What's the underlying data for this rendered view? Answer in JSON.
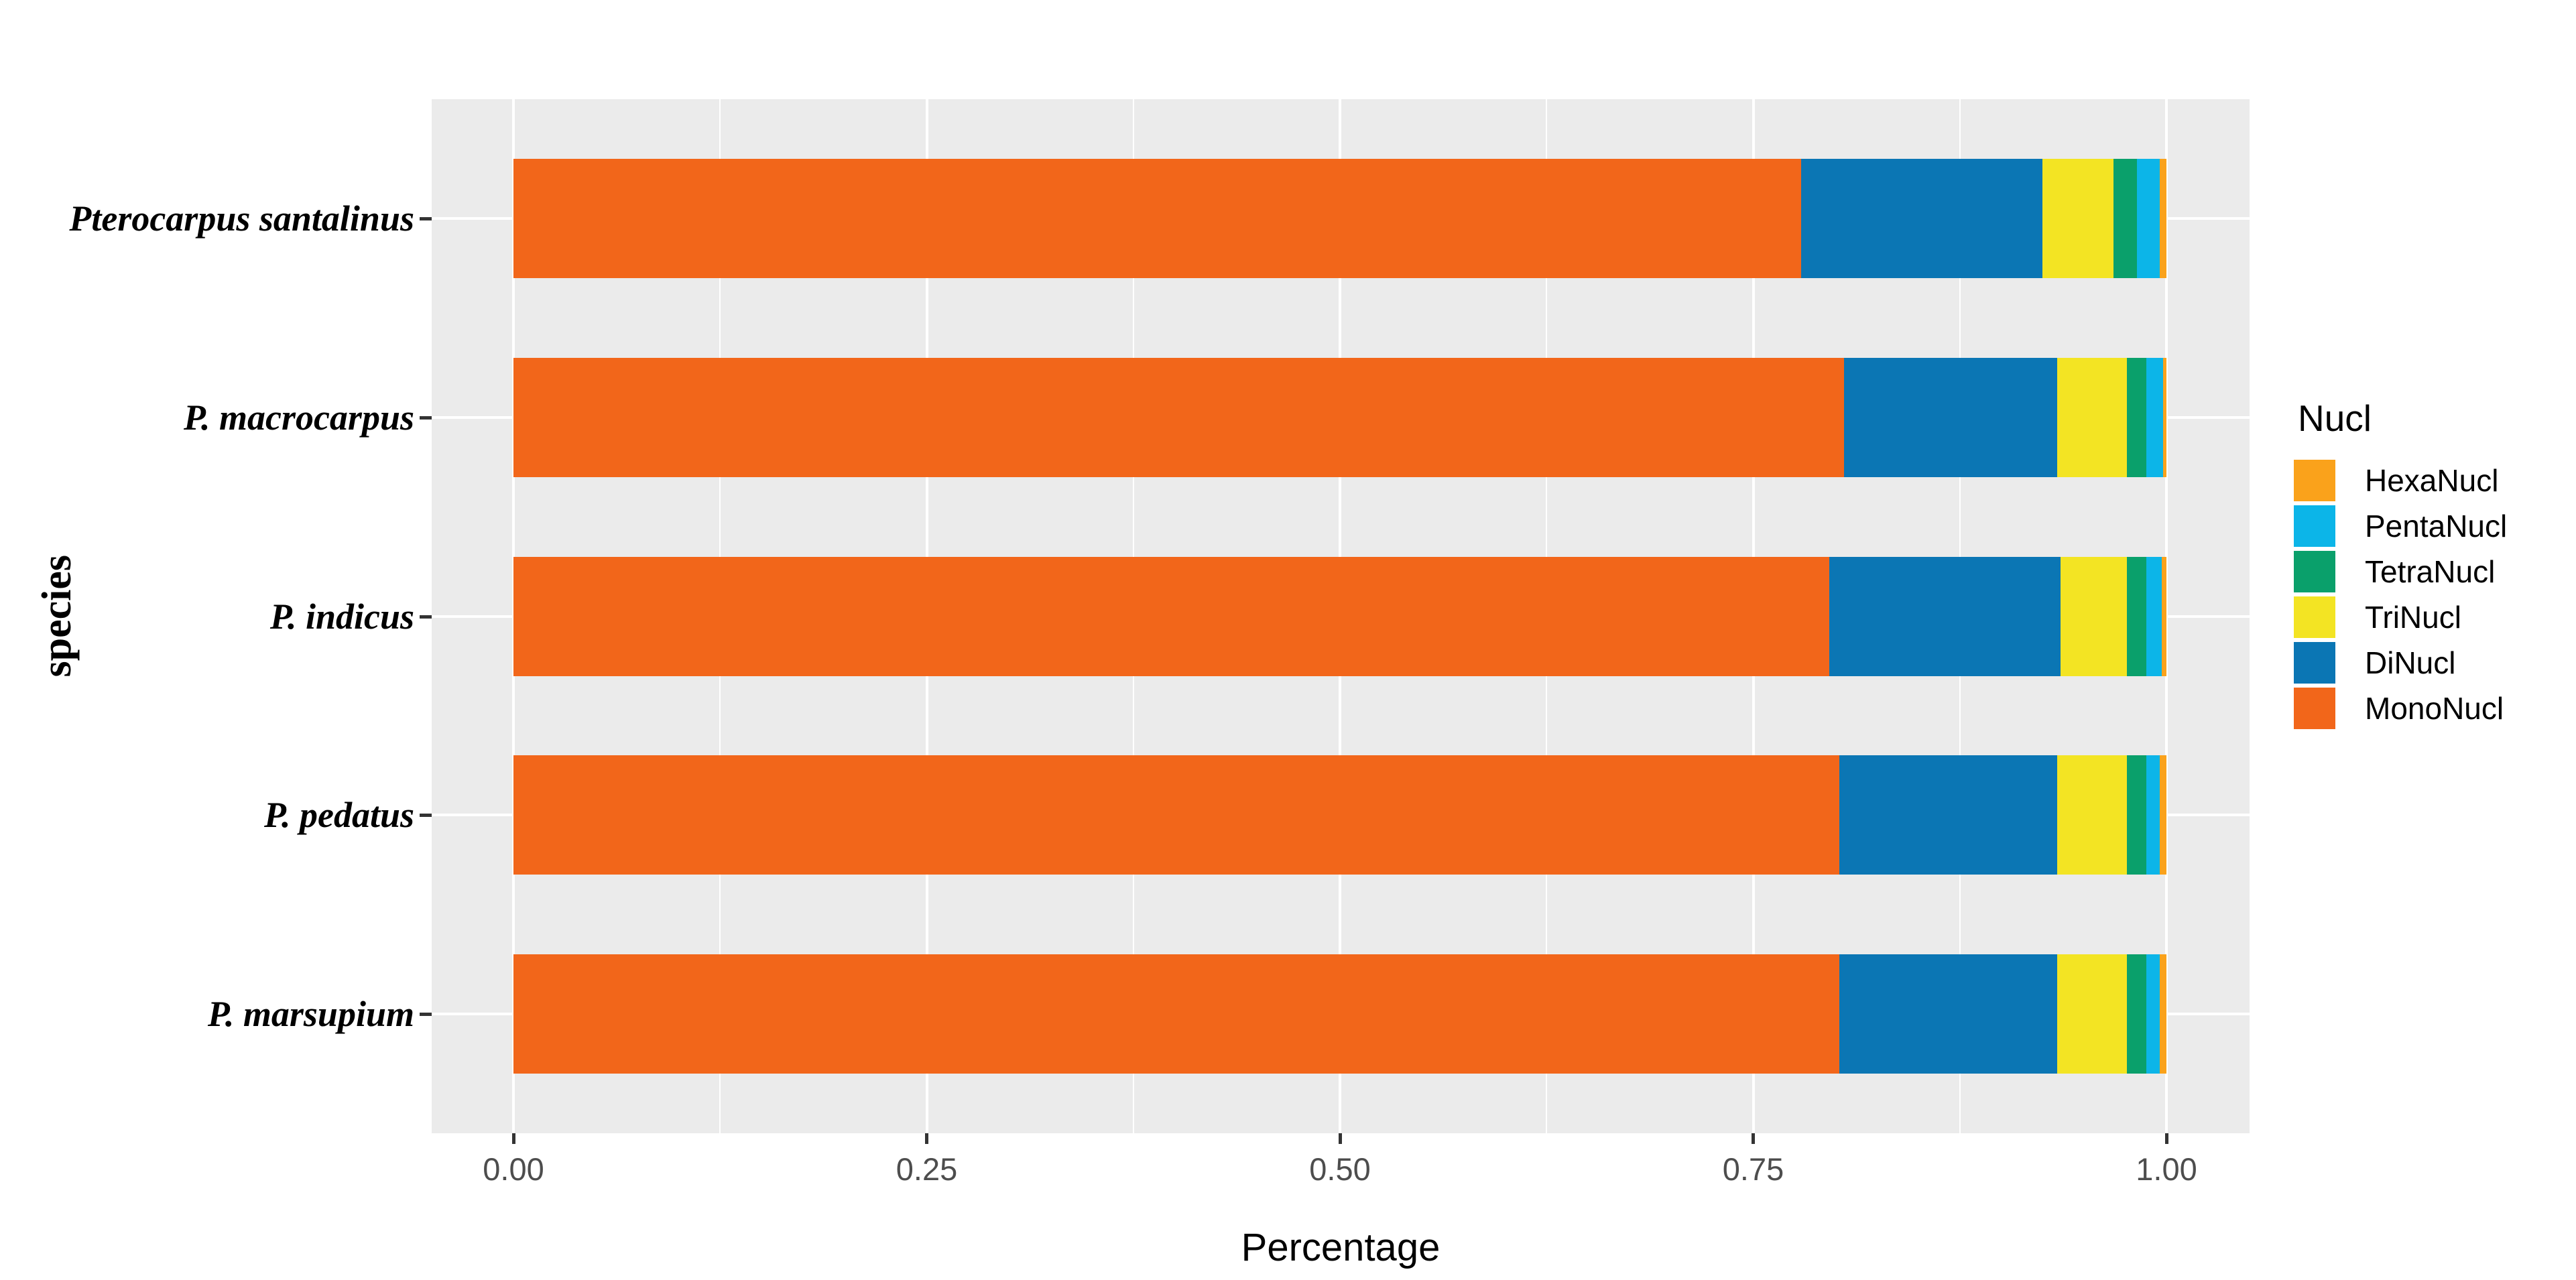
{
  "figure": {
    "background": "#FFFFFF",
    "panel_background": "#EBEBEB",
    "gridline_color": "#FFFFFF",
    "tick_mark_color": "#333333",
    "tick_label_color": "#4D4D4D",
    "axis_title_color": "#000000"
  },
  "legend": {
    "title": "Nucl",
    "entries": [
      {
        "label": "HexaNucl",
        "color": "#FAA21B"
      },
      {
        "label": "PentaNucl",
        "color": "#0CB5E8"
      },
      {
        "label": "TetraNucl",
        "color": "#0AA06B"
      },
      {
        "label": "TriNucl",
        "color": "#F3E423"
      },
      {
        "label": "DiNucl",
        "color": "#0B76B4"
      },
      {
        "label": "MonoNucl",
        "color": "#F2661A"
      }
    ]
  },
  "chart_data": {
    "type": "bar",
    "orientation": "horizontal",
    "stacked": true,
    "normalized": true,
    "xlabel": "Percentage",
    "ylabel": "species",
    "xlim": [
      0,
      1
    ],
    "x_major_ticks": [
      0.0,
      0.25,
      0.5,
      0.75,
      1.0
    ],
    "x_tick_labels": [
      "0.00",
      "0.25",
      "0.50",
      "0.75",
      "1.00"
    ],
    "x_minor_ticks": [
      0.125,
      0.375,
      0.625,
      0.875
    ],
    "grid": true,
    "legend_position": "right",
    "categories": [
      "Pterocarpus santalinus",
      "P. macrocarpus",
      "P. indicus",
      "P. pedatus",
      "P. marsupium"
    ],
    "series": [
      {
        "name": "MonoNucl",
        "color": "#F2661A",
        "values": [
          0.779,
          0.805,
          0.796,
          0.802,
          0.802
        ]
      },
      {
        "name": "DiNucl",
        "color": "#0B76B4",
        "values": [
          0.146,
          0.129,
          0.14,
          0.132,
          0.132
        ]
      },
      {
        "name": "TriNucl",
        "color": "#F3E423",
        "values": [
          0.043,
          0.042,
          0.04,
          0.042,
          0.042
        ]
      },
      {
        "name": "TetraNucl",
        "color": "#0AA06B",
        "values": [
          0.014,
          0.012,
          0.012,
          0.012,
          0.012
        ]
      },
      {
        "name": "PentaNucl",
        "color": "#0CB5E8",
        "values": [
          0.014,
          0.01,
          0.009,
          0.008,
          0.008
        ]
      },
      {
        "name": "HexaNucl",
        "color": "#FAA21B",
        "values": [
          0.004,
          0.002,
          0.003,
          0.004,
          0.004
        ]
      }
    ]
  }
}
